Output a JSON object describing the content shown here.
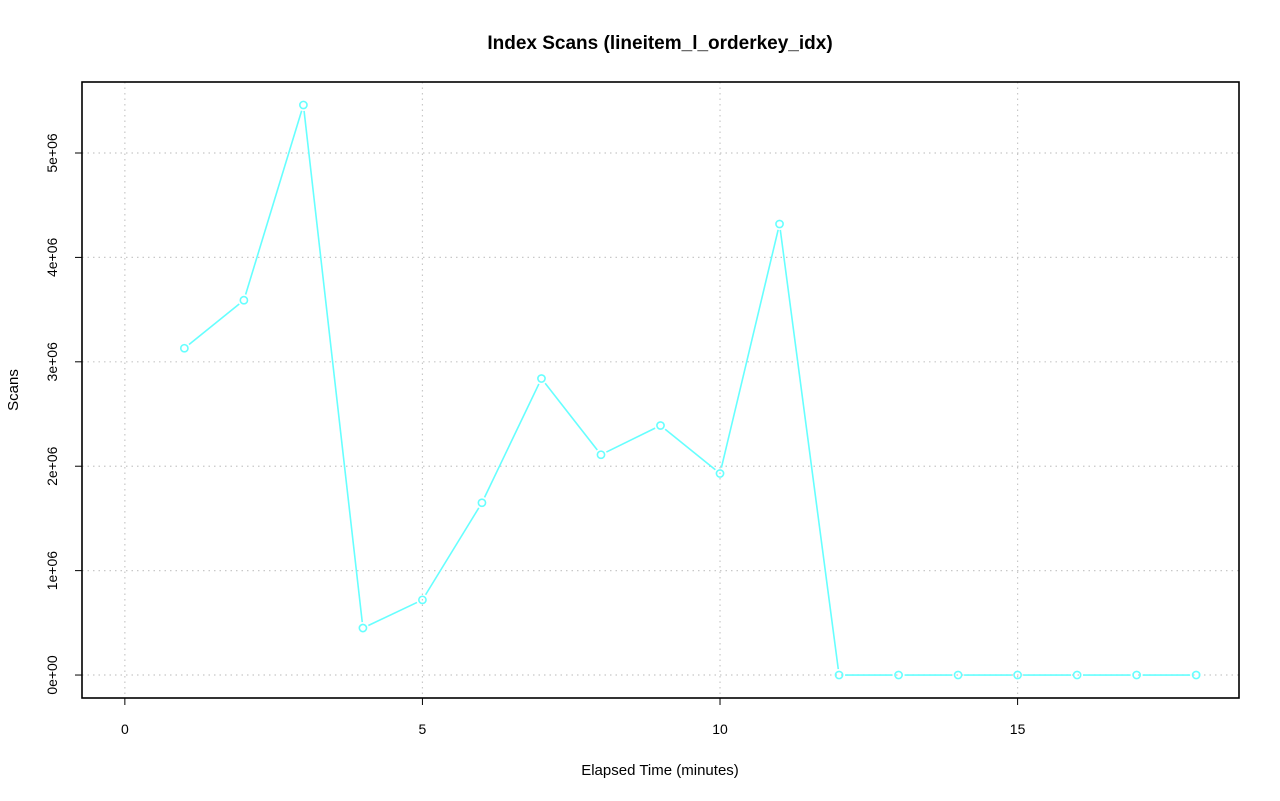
{
  "chart_data": {
    "type": "line",
    "title": "Index Scans (lineitem_l_orderkey_idx)",
    "xlabel": "Elapsed Time (minutes)",
    "ylabel": "Scans",
    "xlim": [
      -0.72,
      18.72
    ],
    "ylim": [
      -220000,
      5680000
    ],
    "x_ticks": [
      0,
      5,
      10,
      15
    ],
    "x_tick_labels": [
      "0",
      "5",
      "10",
      "15"
    ],
    "y_ticks": [
      0,
      1000000,
      2000000,
      3000000,
      4000000,
      5000000
    ],
    "y_tick_labels": [
      "0e+00",
      "1e+06",
      "2e+06",
      "3e+06",
      "4e+06",
      "5e+06"
    ],
    "grid": true,
    "series": [
      {
        "color": "#66ffff",
        "marker": "open-circle",
        "x": [
          1,
          2,
          3,
          4,
          5,
          6,
          7,
          8,
          9,
          10,
          11,
          12,
          13,
          14,
          15,
          16,
          17,
          18
        ],
        "values": [
          3130000,
          3590000,
          5460000,
          450000,
          720000,
          1650000,
          2840000,
          2110000,
          2390000,
          1930000,
          4320000,
          0,
          0,
          0,
          0,
          0,
          0,
          0
        ]
      }
    ]
  }
}
